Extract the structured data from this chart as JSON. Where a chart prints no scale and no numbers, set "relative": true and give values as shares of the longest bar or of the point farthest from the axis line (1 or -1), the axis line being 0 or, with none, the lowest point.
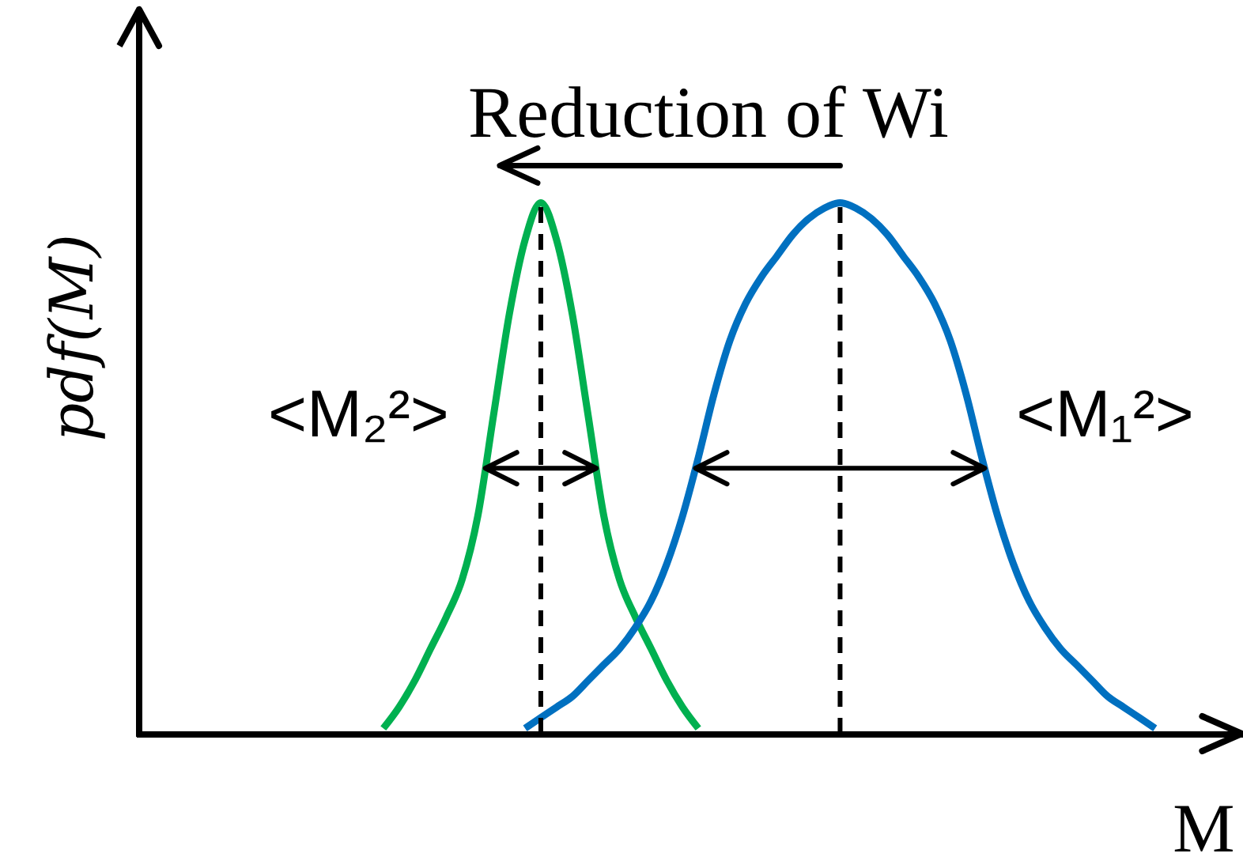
{
  "chart_data": {
    "type": "line",
    "relative": true,
    "xlabel": "M",
    "ylabel": "pdf(M)",
    "categories": [
      null,
      null,
      null,
      null,
      null,
      null,
      null,
      null,
      null,
      null,
      null,
      null,
      null,
      null,
      null,
      null,
      null,
      null,
      null,
      null,
      null,
      null,
      null,
      null,
      null,
      null,
      null,
      null,
      null,
      null,
      null,
      null,
      null,
      null,
      null,
      null,
      null,
      null,
      null,
      null,
      null,
      null,
      null,
      null,
      null,
      null,
      null,
      null,
      null,
      null,
      null,
      null,
      null,
      null,
      null,
      null,
      null,
      null,
      null,
      null,
      null,
      null,
      null,
      null,
      null,
      null,
      null,
      null,
      null,
      null
    ],
    "series": [
      {
        "color": "#00b050",
        "values": [
          null,
          null,
          null,
          null,
          null,
          null,
          null,
          null,
          null,
          null,
          null,
          null,
          null,
          null,
          null,
          0.01,
          0.05,
          0.1,
          0.16,
          0.22,
          0.29,
          0.41,
          0.6,
          0.79,
          0.93,
          1,
          0.93,
          0.79,
          0.6,
          0.41,
          0.29,
          0.22,
          0.16,
          0.1,
          0.05,
          0.01,
          null,
          null,
          null,
          null,
          null,
          null,
          null,
          null,
          null,
          null,
          null,
          null,
          null,
          null,
          null,
          null,
          null,
          null,
          null,
          null,
          null,
          null,
          null,
          null,
          null,
          null,
          null,
          null,
          null,
          null,
          null,
          null,
          null,
          null
        ]
      },
      {
        "color": "#0070c0",
        "values": [
          null,
          null,
          null,
          null,
          null,
          null,
          null,
          null,
          null,
          null,
          null,
          null,
          null,
          null,
          null,
          null,
          null,
          null,
          null,
          null,
          null,
          null,
          null,
          null,
          0.01,
          0.03,
          0.05,
          0.07,
          0.1,
          0.13,
          0.16,
          0.2,
          0.25,
          0.32,
          0.41,
          0.52,
          0.64,
          0.74,
          0.81,
          0.86,
          0.9,
          0.94,
          0.97,
          0.99,
          1,
          0.99,
          0.97,
          0.94,
          0.9,
          0.86,
          0.81,
          0.74,
          0.64,
          0.52,
          0.41,
          0.32,
          0.25,
          0.2,
          0.16,
          0.13,
          0.1,
          0.07,
          0.05,
          0.03,
          0.01,
          null,
          null,
          null,
          null,
          null
        ]
      }
    ],
    "annotations": [
      "Reduction of Wi",
      "<M₂²>",
      "<M₁²>"
    ]
  }
}
